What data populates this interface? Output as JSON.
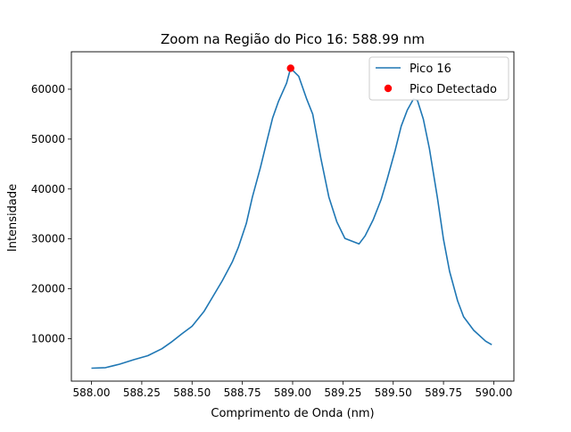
{
  "chart_data": {
    "type": "line",
    "title": "Zoom na Região do Pico 16: 588.99 nm",
    "xlabel": "Comprimento de Onda (nm)",
    "ylabel": "Intensidade",
    "xlim": [
      587.9,
      590.1
    ],
    "ylim": [
      1500,
      67500
    ],
    "xticks": [
      588.0,
      588.25,
      588.5,
      588.75,
      589.0,
      589.25,
      589.5,
      589.75,
      590.0
    ],
    "xtick_labels": [
      "588.00",
      "588.25",
      "588.50",
      "588.75",
      "589.00",
      "589.25",
      "589.50",
      "589.75",
      "590.00"
    ],
    "yticks": [
      10000,
      20000,
      30000,
      40000,
      50000,
      60000
    ],
    "ytick_labels": [
      "10000",
      "20000",
      "30000",
      "40000",
      "50000",
      "60000"
    ],
    "grid": false,
    "legend_position": "upper right",
    "series": [
      {
        "name": "Pico 16",
        "kind": "line",
        "color": "#1f77b4",
        "x": [
          588.0,
          588.07,
          588.14,
          588.21,
          588.28,
          588.35,
          588.4,
          588.45,
          588.5,
          588.56,
          588.6,
          588.65,
          588.7,
          588.73,
          588.77,
          588.8,
          588.84,
          588.87,
          588.9,
          588.93,
          588.97,
          588.99,
          589.03,
          589.07,
          589.1,
          589.14,
          589.18,
          589.22,
          589.26,
          589.33,
          589.36,
          589.4,
          589.44,
          589.47,
          589.51,
          589.54,
          589.57,
          589.6,
          589.62,
          589.65,
          589.68,
          589.72,
          589.75,
          589.78,
          589.82,
          589.85,
          589.9,
          589.96,
          589.99
        ],
        "y": [
          4100,
          4200,
          4900,
          5800,
          6600,
          8000,
          9400,
          11000,
          12500,
          15500,
          18200,
          21600,
          25400,
          28300,
          33100,
          38400,
          44300,
          49300,
          54200,
          57600,
          61200,
          64200,
          62600,
          58000,
          55000,
          46200,
          38400,
          33400,
          30100,
          29000,
          30600,
          33800,
          37900,
          42000,
          47800,
          52600,
          55800,
          58000,
          57800,
          54000,
          48100,
          38200,
          29900,
          23500,
          17600,
          14400,
          11700,
          9500,
          8800
        ]
      },
      {
        "name": "Pico Detectado",
        "kind": "scatter",
        "color": "#ff0000",
        "x": [
          588.99
        ],
        "y": [
          64200
        ]
      }
    ]
  }
}
